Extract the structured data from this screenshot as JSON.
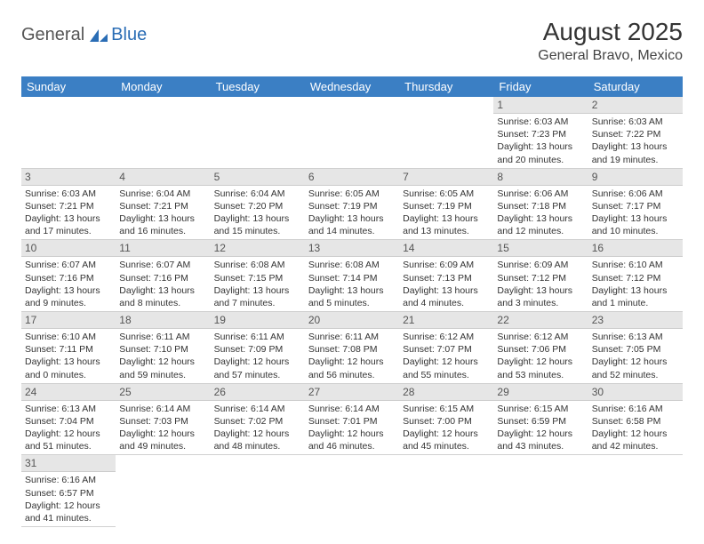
{
  "logo": {
    "text1": "General",
    "text2": "Blue"
  },
  "title": "August 2025",
  "location": "General Bravo, Mexico",
  "colors": {
    "header_bg": "#3b7fc4",
    "header_text": "#ffffff",
    "daynum_bg": "#e6e6e6",
    "cell_border": "#d0d0d0",
    "body_text": "#333333",
    "logo_gray": "#555555",
    "logo_blue": "#2a6db5"
  },
  "day_headers": [
    "Sunday",
    "Monday",
    "Tuesday",
    "Wednesday",
    "Thursday",
    "Friday",
    "Saturday"
  ],
  "weeks": [
    [
      null,
      null,
      null,
      null,
      null,
      {
        "n": "1",
        "sr": "Sunrise: 6:03 AM",
        "ss": "Sunset: 7:23 PM",
        "dl": "Daylight: 13 hours and 20 minutes."
      },
      {
        "n": "2",
        "sr": "Sunrise: 6:03 AM",
        "ss": "Sunset: 7:22 PM",
        "dl": "Daylight: 13 hours and 19 minutes."
      }
    ],
    [
      {
        "n": "3",
        "sr": "Sunrise: 6:03 AM",
        "ss": "Sunset: 7:21 PM",
        "dl": "Daylight: 13 hours and 17 minutes."
      },
      {
        "n": "4",
        "sr": "Sunrise: 6:04 AM",
        "ss": "Sunset: 7:21 PM",
        "dl": "Daylight: 13 hours and 16 minutes."
      },
      {
        "n": "5",
        "sr": "Sunrise: 6:04 AM",
        "ss": "Sunset: 7:20 PM",
        "dl": "Daylight: 13 hours and 15 minutes."
      },
      {
        "n": "6",
        "sr": "Sunrise: 6:05 AM",
        "ss": "Sunset: 7:19 PM",
        "dl": "Daylight: 13 hours and 14 minutes."
      },
      {
        "n": "7",
        "sr": "Sunrise: 6:05 AM",
        "ss": "Sunset: 7:19 PM",
        "dl": "Daylight: 13 hours and 13 minutes."
      },
      {
        "n": "8",
        "sr": "Sunrise: 6:06 AM",
        "ss": "Sunset: 7:18 PM",
        "dl": "Daylight: 13 hours and 12 minutes."
      },
      {
        "n": "9",
        "sr": "Sunrise: 6:06 AM",
        "ss": "Sunset: 7:17 PM",
        "dl": "Daylight: 13 hours and 10 minutes."
      }
    ],
    [
      {
        "n": "10",
        "sr": "Sunrise: 6:07 AM",
        "ss": "Sunset: 7:16 PM",
        "dl": "Daylight: 13 hours and 9 minutes."
      },
      {
        "n": "11",
        "sr": "Sunrise: 6:07 AM",
        "ss": "Sunset: 7:16 PM",
        "dl": "Daylight: 13 hours and 8 minutes."
      },
      {
        "n": "12",
        "sr": "Sunrise: 6:08 AM",
        "ss": "Sunset: 7:15 PM",
        "dl": "Daylight: 13 hours and 7 minutes."
      },
      {
        "n": "13",
        "sr": "Sunrise: 6:08 AM",
        "ss": "Sunset: 7:14 PM",
        "dl": "Daylight: 13 hours and 5 minutes."
      },
      {
        "n": "14",
        "sr": "Sunrise: 6:09 AM",
        "ss": "Sunset: 7:13 PM",
        "dl": "Daylight: 13 hours and 4 minutes."
      },
      {
        "n": "15",
        "sr": "Sunrise: 6:09 AM",
        "ss": "Sunset: 7:12 PM",
        "dl": "Daylight: 13 hours and 3 minutes."
      },
      {
        "n": "16",
        "sr": "Sunrise: 6:10 AM",
        "ss": "Sunset: 7:12 PM",
        "dl": "Daylight: 13 hours and 1 minute."
      }
    ],
    [
      {
        "n": "17",
        "sr": "Sunrise: 6:10 AM",
        "ss": "Sunset: 7:11 PM",
        "dl": "Daylight: 13 hours and 0 minutes."
      },
      {
        "n": "18",
        "sr": "Sunrise: 6:11 AM",
        "ss": "Sunset: 7:10 PM",
        "dl": "Daylight: 12 hours and 59 minutes."
      },
      {
        "n": "19",
        "sr": "Sunrise: 6:11 AM",
        "ss": "Sunset: 7:09 PM",
        "dl": "Daylight: 12 hours and 57 minutes."
      },
      {
        "n": "20",
        "sr": "Sunrise: 6:11 AM",
        "ss": "Sunset: 7:08 PM",
        "dl": "Daylight: 12 hours and 56 minutes."
      },
      {
        "n": "21",
        "sr": "Sunrise: 6:12 AM",
        "ss": "Sunset: 7:07 PM",
        "dl": "Daylight: 12 hours and 55 minutes."
      },
      {
        "n": "22",
        "sr": "Sunrise: 6:12 AM",
        "ss": "Sunset: 7:06 PM",
        "dl": "Daylight: 12 hours and 53 minutes."
      },
      {
        "n": "23",
        "sr": "Sunrise: 6:13 AM",
        "ss": "Sunset: 7:05 PM",
        "dl": "Daylight: 12 hours and 52 minutes."
      }
    ],
    [
      {
        "n": "24",
        "sr": "Sunrise: 6:13 AM",
        "ss": "Sunset: 7:04 PM",
        "dl": "Daylight: 12 hours and 51 minutes."
      },
      {
        "n": "25",
        "sr": "Sunrise: 6:14 AM",
        "ss": "Sunset: 7:03 PM",
        "dl": "Daylight: 12 hours and 49 minutes."
      },
      {
        "n": "26",
        "sr": "Sunrise: 6:14 AM",
        "ss": "Sunset: 7:02 PM",
        "dl": "Daylight: 12 hours and 48 minutes."
      },
      {
        "n": "27",
        "sr": "Sunrise: 6:14 AM",
        "ss": "Sunset: 7:01 PM",
        "dl": "Daylight: 12 hours and 46 minutes."
      },
      {
        "n": "28",
        "sr": "Sunrise: 6:15 AM",
        "ss": "Sunset: 7:00 PM",
        "dl": "Daylight: 12 hours and 45 minutes."
      },
      {
        "n": "29",
        "sr": "Sunrise: 6:15 AM",
        "ss": "Sunset: 6:59 PM",
        "dl": "Daylight: 12 hours and 43 minutes."
      },
      {
        "n": "30",
        "sr": "Sunrise: 6:16 AM",
        "ss": "Sunset: 6:58 PM",
        "dl": "Daylight: 12 hours and 42 minutes."
      }
    ],
    [
      {
        "n": "31",
        "sr": "Sunrise: 6:16 AM",
        "ss": "Sunset: 6:57 PM",
        "dl": "Daylight: 12 hours and 41 minutes."
      },
      null,
      null,
      null,
      null,
      null,
      null
    ]
  ]
}
